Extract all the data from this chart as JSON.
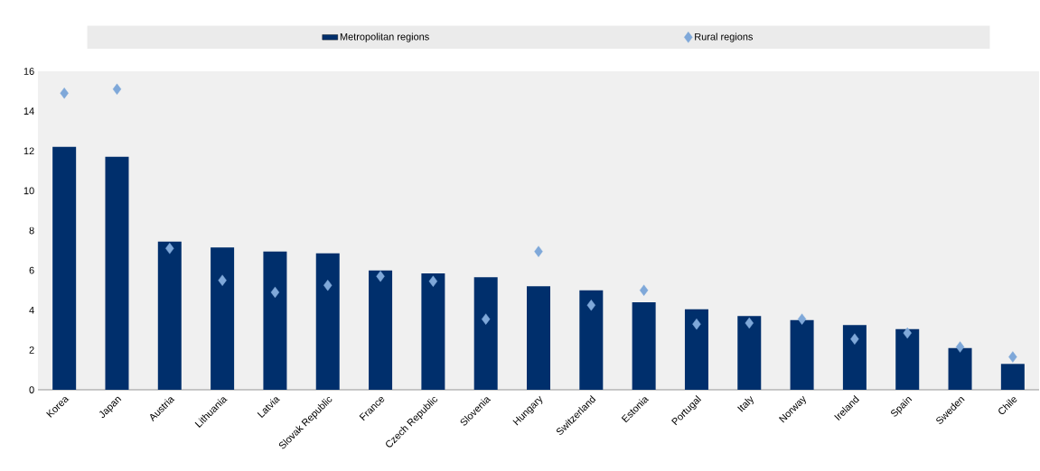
{
  "chart_data": {
    "type": "bar",
    "categories": [
      "Korea",
      "Japan",
      "Austria",
      "Lithuania",
      "Latvia",
      "Slovak Republic",
      "France",
      "Czech Republic",
      "Slovenia",
      "Hungary",
      "Switzerland",
      "Estonia",
      "Portugal",
      "Italy",
      "Norway",
      "Ireland",
      "Spain",
      "Sweden",
      "Chile"
    ],
    "series": [
      {
        "name": "Metropolitan regions",
        "color": "#002f6c",
        "values": [
          12.2,
          11.7,
          7.45,
          7.15,
          6.95,
          6.85,
          6.0,
          5.85,
          5.65,
          5.2,
          5.0,
          4.4,
          4.05,
          3.7,
          3.5,
          3.25,
          3.05,
          2.1,
          1.3
        ]
      },
      {
        "name": "Rural regions",
        "color": "#7fa8d9",
        "type": "scatter",
        "marker": "diamond",
        "values": [
          14.9,
          15.1,
          7.1,
          5.5,
          4.9,
          5.25,
          5.7,
          5.45,
          3.55,
          6.95,
          4.25,
          5.0,
          3.3,
          3.35,
          3.55,
          2.55,
          2.85,
          2.15,
          1.65
        ]
      }
    ],
    "ylim": [
      0,
      16
    ],
    "yticks": [
      0,
      2,
      4,
      6,
      8,
      10,
      12,
      14,
      16
    ],
    "legend": "top"
  }
}
